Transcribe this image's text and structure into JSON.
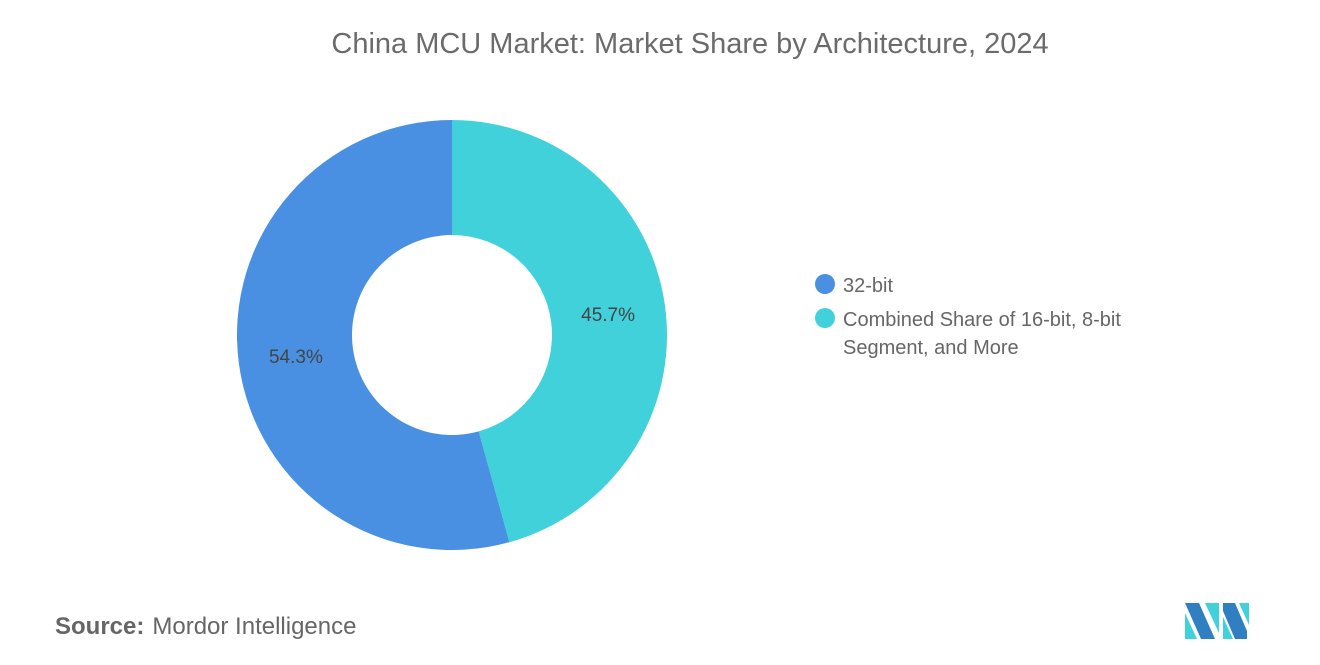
{
  "chart_data": {
    "type": "pie",
    "donut": true,
    "title": "China MCU Market: Market Share by Architecture, 2024",
    "slices": [
      {
        "label": "Combined Share of 16-bit, 8-bit Segment, and More",
        "value": 45.7,
        "display": "45.7%",
        "color": "#40D1DB"
      },
      {
        "label": "32-bit",
        "value": 54.3,
        "display": "54.3%",
        "color": "#4A90E2"
      }
    ],
    "legend_order": [
      1,
      0
    ],
    "legend_position": "right"
  },
  "source": {
    "label": "Source:",
    "value": "Mordor Intelligence"
  }
}
